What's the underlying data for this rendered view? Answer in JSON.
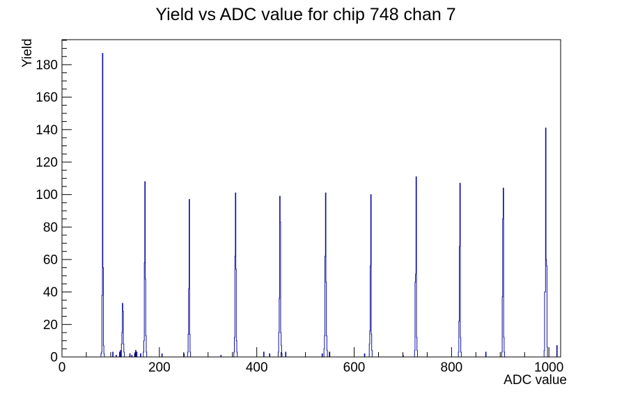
{
  "window": {
    "background": "#ffffff"
  },
  "chart_data": {
    "type": "line",
    "style": "step-histogram",
    "title": "Yield vs ADC value for chip 748 chan 7",
    "xlabel": "ADC value",
    "ylabel": "Yield",
    "xlim": [
      0,
      1024
    ],
    "ylim": [
      0,
      195.4
    ],
    "x_major_ticks": [
      0,
      200,
      400,
      600,
      800,
      1000
    ],
    "x_minor_step": 50,
    "y_major_ticks": [
      0,
      20,
      40,
      60,
      80,
      100,
      120,
      140,
      160,
      180
    ],
    "y_minor_step": 5,
    "grid": false,
    "legend": false,
    "line_color": "#1010a0",
    "frame_color": "#000000",
    "bins": [
      [
        80,
        2
      ],
      [
        81,
        3
      ],
      [
        82,
        38
      ],
      [
        83,
        187
      ],
      [
        84,
        55
      ],
      [
        85,
        7
      ],
      [
        86,
        2
      ],
      [
        104,
        3
      ],
      [
        111,
        1
      ],
      [
        118,
        3
      ],
      [
        120,
        4
      ],
      [
        122,
        8
      ],
      [
        123,
        15
      ],
      [
        124,
        33
      ],
      [
        125,
        28
      ],
      [
        126,
        8
      ],
      [
        127,
        3
      ],
      [
        139,
        2
      ],
      [
        143,
        1
      ],
      [
        149,
        2
      ],
      [
        151,
        4
      ],
      [
        153,
        3
      ],
      [
        161,
        2
      ],
      [
        167,
        3
      ],
      [
        168,
        10
      ],
      [
        169,
        58
      ],
      [
        170,
        108
      ],
      [
        171,
        48
      ],
      [
        172,
        13
      ],
      [
        173,
        3
      ],
      [
        205,
        2
      ],
      [
        250,
        2
      ],
      [
        258,
        3
      ],
      [
        259,
        14
      ],
      [
        260,
        42
      ],
      [
        261,
        97
      ],
      [
        262,
        14
      ],
      [
        263,
        3
      ],
      [
        326,
        1
      ],
      [
        353,
        3
      ],
      [
        354,
        12
      ],
      [
        355,
        62
      ],
      [
        356,
        101
      ],
      [
        357,
        54
      ],
      [
        358,
        10
      ],
      [
        359,
        3
      ],
      [
        414,
        3
      ],
      [
        426,
        2
      ],
      [
        444,
        3
      ],
      [
        445,
        15
      ],
      [
        446,
        36
      ],
      [
        447,
        99
      ],
      [
        448,
        83
      ],
      [
        449,
        15
      ],
      [
        450,
        7
      ],
      [
        451,
        2
      ],
      [
        459,
        3
      ],
      [
        534,
        2
      ],
      [
        538,
        5
      ],
      [
        539,
        13
      ],
      [
        540,
        62
      ],
      [
        541,
        101
      ],
      [
        542,
        46
      ],
      [
        543,
        13
      ],
      [
        544,
        4
      ],
      [
        549,
        3
      ],
      [
        621,
        2
      ],
      [
        631,
        8
      ],
      [
        632,
        16
      ],
      [
        633,
        56
      ],
      [
        634,
        100
      ],
      [
        635,
        14
      ],
      [
        636,
        4
      ],
      [
        700,
        1
      ],
      [
        724,
        4
      ],
      [
        725,
        46
      ],
      [
        726,
        51
      ],
      [
        727,
        111
      ],
      [
        728,
        12
      ],
      [
        729,
        4
      ],
      [
        814,
        3
      ],
      [
        815,
        22
      ],
      [
        816,
        68
      ],
      [
        817,
        107
      ],
      [
        818,
        12
      ],
      [
        819,
        3
      ],
      [
        870,
        3
      ],
      [
        903,
        3
      ],
      [
        904,
        37
      ],
      [
        905,
        85
      ],
      [
        906,
        104
      ],
      [
        907,
        12
      ],
      [
        908,
        3
      ],
      [
        990,
        4
      ],
      [
        991,
        40
      ],
      [
        992,
        40
      ],
      [
        993,
        141
      ],
      [
        994,
        60
      ],
      [
        995,
        56
      ],
      [
        996,
        6
      ],
      [
        1016,
        7
      ]
    ]
  }
}
